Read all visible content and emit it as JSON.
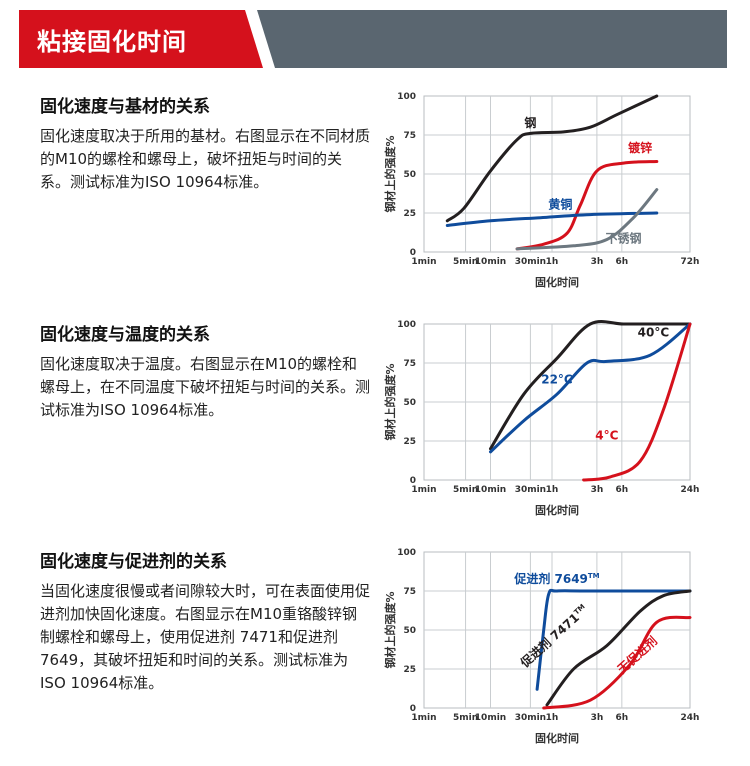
{
  "header": {
    "title": "粘接固化时间"
  },
  "sections": [
    {
      "heading": "固化速度与基材的关系",
      "body": "固化速度取决于所用的基材。右图显示在不同材质的M10的螺栓和螺母上，破坏扭矩与时间的关系。测试标准为ISO 10964标准。"
    },
    {
      "heading": "固化速度与温度的关系",
      "body": "固化速度取决于温度。右图显示在M10的螺栓和螺母上，在不同温度下破坏扭矩与时间的关系。测试标准为ISO 10964标准。"
    },
    {
      "heading": "固化速度与促进剂的关系",
      "body": "当固化速度很慢或者间隙较大时，可在表面使用促进剂加快固化速度。右图显示在M10重铬酸锌钢制螺栓和螺母上，使用促进剂 7471和促进剂 7649，其破坏扭矩和时间的关系。测试标准为ISO 10964标准。"
    }
  ],
  "chart_data": [
    {
      "type": "line",
      "ylabel": "钢材上的强度%",
      "xlabel": "固化时间",
      "ylim": [
        0,
        100
      ],
      "yticks": [
        "0",
        "25",
        "50",
        "75",
        "100"
      ],
      "xticks": [
        "1min",
        "5min",
        "10min",
        "30min",
        "1h",
        "3h",
        "6h",
        "72h"
      ],
      "series": [
        {
          "name": "钢",
          "color": "#231f20",
          "x": [
            0.7,
            1.2,
            2.0,
            2.8,
            3.2,
            4.2,
            5.0,
            5.8,
            7.0
          ],
          "y": [
            20,
            28,
            52,
            72,
            76,
            77,
            80,
            88,
            100
          ]
        },
        {
          "name": "镀锌",
          "color": "#d5111c",
          "x": [
            2.8,
            3.6,
            4.3,
            4.7,
            5.2,
            6.0,
            7.0
          ],
          "y": [
            2,
            5,
            12,
            30,
            52,
            57,
            58
          ]
        },
        {
          "name": "黄铜",
          "color": "#0f4c9c",
          "x": [
            0.7,
            2.0,
            3.5,
            5.0,
            7.0
          ],
          "y": [
            17,
            20,
            22,
            24,
            25
          ]
        },
        {
          "name": "不锈钢",
          "color": "#6d7880",
          "x": [
            2.8,
            4.5,
            5.5,
            6.3,
            7.0
          ],
          "y": [
            2,
            4,
            8,
            22,
            40
          ]
        }
      ]
    },
    {
      "type": "line",
      "ylabel": "钢材上的强度%",
      "xlabel": "固化时间",
      "ylim": [
        0,
        100
      ],
      "yticks": [
        "0",
        "25",
        "50",
        "75",
        "100"
      ],
      "xticks": [
        "1min",
        "5min",
        "10min",
        "30min",
        "1h",
        "3h",
        "6h",
        "24h"
      ],
      "series": [
        {
          "name": "40°C",
          "color": "#231f20",
          "x": [
            2.0,
            3.0,
            4.0,
            5.0,
            6.0,
            7.0,
            8.0
          ],
          "y": [
            20,
            55,
            78,
            100,
            100,
            100,
            100
          ]
        },
        {
          "name": "22°C",
          "color": "#0f4c9c",
          "x": [
            2.0,
            3.0,
            4.0,
            4.9,
            5.5,
            6.8,
            8.0
          ],
          "y": [
            18,
            38,
            55,
            75,
            76,
            80,
            100
          ]
        },
        {
          "name": "4°C",
          "color": "#d5111c",
          "x": [
            4.8,
            5.6,
            6.5,
            7.2,
            8.0
          ],
          "y": [
            0,
            2,
            12,
            45,
            100
          ]
        }
      ]
    },
    {
      "type": "line",
      "ylabel": "钢材上的强度%",
      "xlabel": "固化时间",
      "ylim": [
        0,
        100
      ],
      "yticks": [
        "0",
        "25",
        "50",
        "75",
        "100"
      ],
      "xticks": [
        "1min",
        "5min",
        "10min",
        "30min",
        "1h",
        "3h",
        "6h",
        "24h"
      ],
      "series": [
        {
          "name": "促进剂 7649",
          "superscript": "TM",
          "color": "#0f4c9c",
          "x": [
            3.4,
            3.6,
            3.75,
            4.0,
            5.0,
            8.0
          ],
          "y": [
            12,
            50,
            73,
            75,
            75,
            75
          ]
        },
        {
          "name": "促进剂 7471",
          "superscript": "TM",
          "color": "#231f20",
          "x": [
            3.7,
            4.5,
            5.5,
            6.5,
            7.2,
            8.0
          ],
          "y": [
            2,
            25,
            40,
            62,
            72,
            75
          ]
        },
        {
          "name": "无促进剂",
          "color": "#d5111c",
          "x": [
            3.6,
            5.0,
            6.2,
            7.0,
            8.0
          ],
          "y": [
            0,
            5,
            28,
            55,
            58
          ]
        }
      ]
    }
  ]
}
